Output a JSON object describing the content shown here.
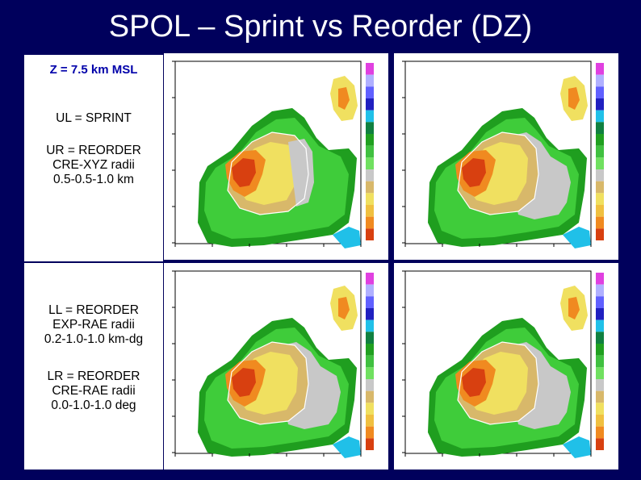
{
  "title": "SPOL – Sprint vs Reorder (DZ)",
  "side_notes": {
    "z_level": "Z = 7.5 km MSL",
    "ul": "UL = SPRINT",
    "ur_1": "UR = REORDER",
    "ur_2": "CRE-XYZ radii",
    "ur_3": "0.5-0.5-1.0 km",
    "ll_1": "LL = REORDER",
    "ll_2": "EXP-RAE radii",
    "ll_3": "0.2-1.0-1.0 km-dg",
    "lr_1": "LR = REORDER",
    "lr_2": "CRE-RAE radii",
    "lr_3": "0.0-1.0-1.0 deg"
  },
  "panels": [
    {
      "id": "ul",
      "label": "SPRINT"
    },
    {
      "id": "ur",
      "label": "REORDER CRE-XYZ"
    },
    {
      "id": "ll",
      "label": "REORDER EXP-RAE"
    },
    {
      "id": "lr",
      "label": "REORDER CRE-RAE"
    }
  ],
  "colors": {
    "background": "#00005c",
    "echo_green_dark": "#1f9e1f",
    "echo_green": "#3fcc3a",
    "echo_green_light": "#6fe06a",
    "echo_grey": "#c8c8c8",
    "echo_tan": "#d8b86a",
    "echo_yellow": "#f0e060",
    "echo_orange": "#f08a20",
    "echo_red": "#d84010",
    "echo_cyan": "#20c0e8"
  },
  "colorbar": [
    "#e040e0",
    "#b0b0ff",
    "#6060ff",
    "#2020c0",
    "#20c0e8",
    "#108040",
    "#20a020",
    "#40c040",
    "#70e060",
    "#c8c8c8",
    "#d8b86a",
    "#f0e060",
    "#f0c040",
    "#f08a20",
    "#d84010"
  ]
}
